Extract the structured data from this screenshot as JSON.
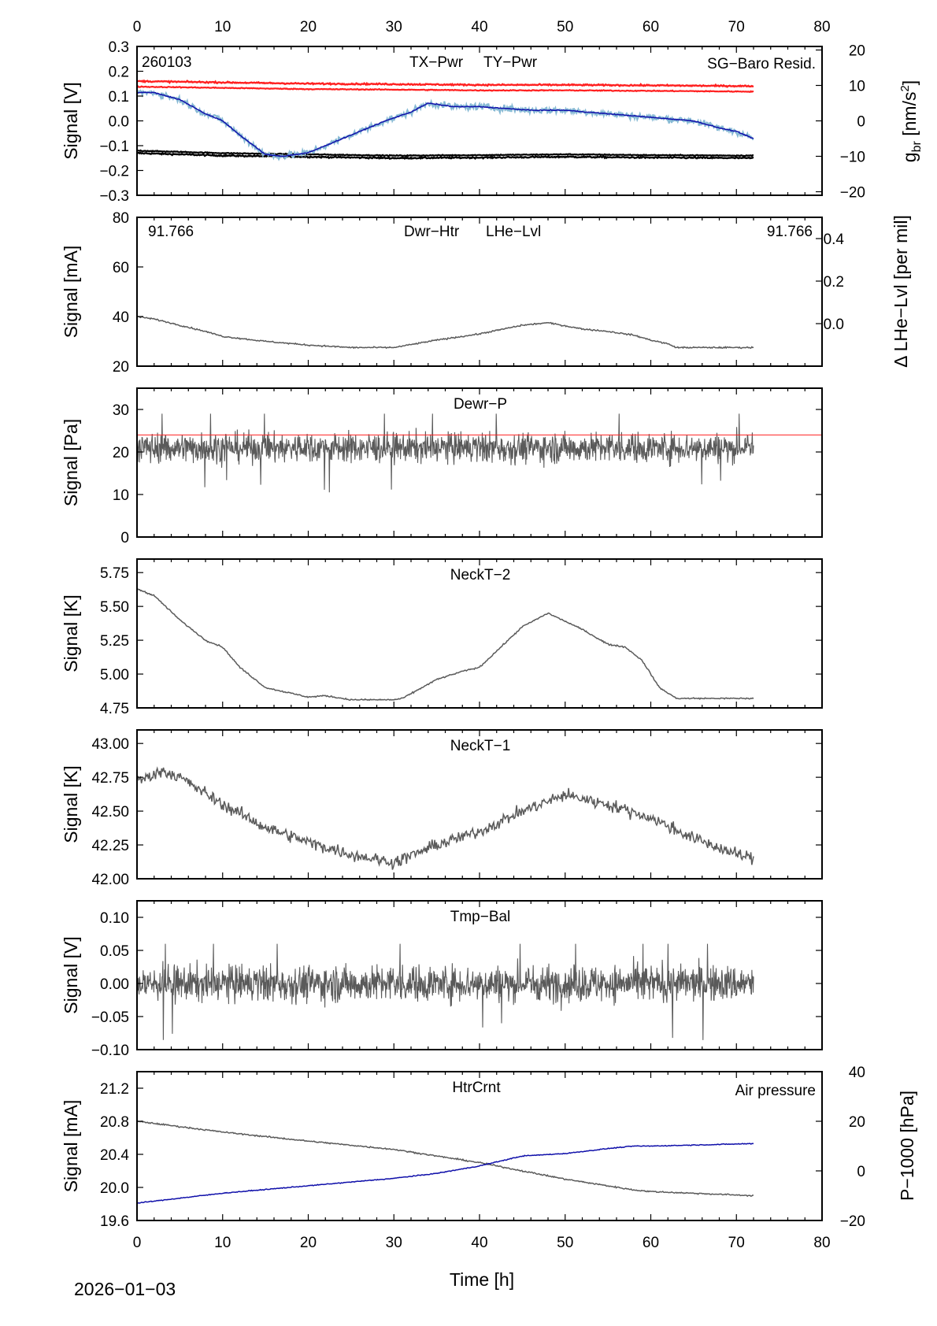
{
  "page": {
    "date_label": "2026−01−03",
    "x_axis_label": "Time [h]",
    "x_ticks": [
      "0",
      "10",
      "20",
      "30",
      "40",
      "50",
      "60",
      "70",
      "80"
    ],
    "xlim": [
      0,
      80
    ]
  },
  "colors": {
    "gray": "#5a5a5a",
    "red": "#ff2020",
    "blue": "#1010aa",
    "lightblue": "#86b9d4",
    "black": "#000000"
  },
  "chart_data": [
    {
      "type": "line",
      "panel": "power",
      "ylabel": "Signal [V]",
      "ylim": [
        -0.3,
        0.3
      ],
      "yticks": [
        "0.3",
        "0.2",
        "0.1",
        "0.0",
        "−0.1",
        "−0.2",
        "−0.3"
      ],
      "y2label": "g_br [nm/s^2]",
      "y2label_main": "g",
      "y2label_sub": "br",
      "y2label_rest": " [nm/s",
      "y2label_sup": "2",
      "y2label_end": "]",
      "y2lim": [
        -21,
        21
      ],
      "y2ticks": [
        "20",
        "10",
        "0",
        "−10",
        "−20"
      ],
      "station_id": "260103",
      "legend": [
        "TX−Pwr",
        "TY−Pwr",
        "SG−Baro Resid."
      ],
      "series": [
        {
          "name": "TX-Pwr",
          "color": "black",
          "axis": "left",
          "x": [
            0,
            10,
            20,
            30,
            40,
            50,
            60,
            72
          ],
          "values": [
            -0.13,
            -0.14,
            -0.145,
            -0.15,
            -0.148,
            -0.145,
            -0.148,
            -0.15
          ]
        },
        {
          "name": "TY-Pwr",
          "color": "red",
          "axis": "left",
          "x": [
            0,
            10,
            20,
            30,
            40,
            50,
            60,
            72
          ],
          "values": [
            0.16,
            0.155,
            0.15,
            0.148,
            0.145,
            0.145,
            0.143,
            0.14
          ]
        },
        {
          "name": "SG-Baro Resid.",
          "color": "blue",
          "axis": "right",
          "x": [
            0,
            2,
            5,
            8,
            10,
            12,
            15,
            17,
            20,
            23,
            26,
            29,
            32,
            34,
            37,
            40,
            43,
            46,
            50,
            55,
            60,
            65,
            68,
            70,
            72
          ],
          "values": [
            8,
            8,
            6,
            2,
            0,
            -4,
            -9.5,
            -10,
            -9,
            -6,
            -3,
            0,
            2.5,
            5,
            4,
            4,
            3.5,
            3,
            3,
            2,
            1,
            0,
            -2,
            -3,
            -5
          ]
        }
      ]
    },
    {
      "type": "line",
      "panel": "dewar-heater",
      "ylabel": "Signal [mA]",
      "ylim": [
        20,
        80
      ],
      "yticks": [
        "80",
        "60",
        "40",
        "20"
      ],
      "y2label": "Δ LHe−Lvl [per mil]",
      "y2lim": [
        -0.2,
        0.5
      ],
      "y2ticks": [
        "0.4",
        "0.2",
        "0.0"
      ],
      "annotations": {
        "left": "91.766",
        "right": "91.766"
      },
      "legend": [
        "Dwr−Htr",
        "LHe−Lvl"
      ],
      "series": [
        {
          "name": "Dwr-Htr",
          "color": "gray",
          "x": [
            0,
            2,
            5,
            8,
            10,
            15,
            20,
            25,
            30,
            35,
            40,
            45,
            48,
            52,
            55,
            58,
            60,
            62,
            63,
            65,
            68,
            72
          ],
          "values": [
            40,
            39,
            36.5,
            34,
            32,
            30,
            28.5,
            27.5,
            27.5,
            30.5,
            33,
            36.5,
            37.5,
            35,
            34,
            32.5,
            30.5,
            29,
            27.5,
            27.5,
            27.5,
            27.5
          ]
        }
      ]
    },
    {
      "type": "line",
      "panel": "dewar-pressure",
      "ylabel": "Signal [Pa]",
      "ylim": [
        0,
        35
      ],
      "yticks": [
        "30",
        "20",
        "10",
        "0"
      ],
      "legend": [
        "Dewr−P"
      ],
      "threshold": 24,
      "series": [
        {
          "name": "Dewr-P",
          "color": "gray",
          "noise": "high",
          "x": [
            0,
            72
          ],
          "values": [
            21,
            21
          ],
          "min": 10,
          "max": 29
        }
      ]
    },
    {
      "type": "line",
      "panel": "neck-t2",
      "ylabel": "Signal [K]",
      "ylim": [
        4.75,
        5.85
      ],
      "yticks": [
        "5.75",
        "5.50",
        "5.25",
        "5.00",
        "4.75"
      ],
      "legend": [
        "NeckT−2"
      ],
      "series": [
        {
          "name": "NeckT-2",
          "color": "gray",
          "x": [
            0,
            2,
            5,
            8,
            10,
            12,
            15,
            20,
            22,
            25,
            30,
            31,
            35,
            38,
            40,
            45,
            48,
            52,
            55,
            57,
            59,
            61,
            63,
            72
          ],
          "values": [
            5.63,
            5.58,
            5.4,
            5.25,
            5.2,
            5.05,
            4.9,
            4.83,
            4.84,
            4.81,
            4.81,
            4.82,
            4.96,
            5.02,
            5.05,
            5.35,
            5.45,
            5.33,
            5.22,
            5.2,
            5.1,
            4.9,
            4.82,
            4.82
          ]
        }
      ]
    },
    {
      "type": "line",
      "panel": "neck-t1",
      "ylabel": "Signal [K]",
      "ylim": [
        42.0,
        43.1
      ],
      "yticks": [
        "43.00",
        "42.75",
        "42.50",
        "42.25",
        "42.00"
      ],
      "legend": [
        "NeckT−1"
      ],
      "series": [
        {
          "name": "NeckT-1",
          "color": "gray",
          "noise": "medium",
          "x": [
            0,
            3,
            5,
            10,
            15,
            20,
            25,
            30,
            35,
            40,
            45,
            50,
            55,
            60,
            65,
            70,
            72
          ],
          "values": [
            42.72,
            42.8,
            42.75,
            42.55,
            42.38,
            42.27,
            42.18,
            42.12,
            42.25,
            42.35,
            42.5,
            42.62,
            42.55,
            42.45,
            42.3,
            42.18,
            42.15
          ]
        }
      ]
    },
    {
      "type": "line",
      "panel": "temp-balance",
      "ylabel": "Signal [V]",
      "ylim": [
        -0.1,
        0.125
      ],
      "yticks": [
        "0.10",
        "0.05",
        "0.00",
        "−0.05",
        "−0.10"
      ],
      "legend": [
        "Tmp−Bal"
      ],
      "series": [
        {
          "name": "Tmp-Bal",
          "color": "gray",
          "noise": "high",
          "x": [
            0,
            72
          ],
          "values": [
            0.0,
            0.0
          ],
          "min": -0.087,
          "max": 0.06
        }
      ]
    },
    {
      "type": "line",
      "panel": "heater-current",
      "ylabel": "Signal [mA]",
      "ylim": [
        19.6,
        21.4
      ],
      "yticks": [
        "21.2",
        "20.8",
        "20.4",
        "20.0",
        "19.6"
      ],
      "y2label": "P−1000 [hPa]",
      "y2lim": [
        -20,
        40
      ],
      "y2ticks": [
        "40",
        "20",
        "0",
        "−20"
      ],
      "legend": [
        "HtrCrnt",
        "Air pressure"
      ],
      "series": [
        {
          "name": "HtrCrnt",
          "color": "gray",
          "axis": "left",
          "x": [
            0,
            10,
            20,
            30,
            40,
            50,
            58,
            60,
            72
          ],
          "values": [
            20.8,
            20.67,
            20.56,
            20.46,
            20.3,
            20.1,
            19.97,
            19.95,
            19.9
          ]
        },
        {
          "name": "Air pressure",
          "color": "blue",
          "axis": "right",
          "x": [
            0,
            10,
            20,
            30,
            35,
            40,
            45,
            50,
            55,
            58,
            60,
            72
          ],
          "values": [
            -13,
            -9,
            -6,
            -3,
            -1,
            2,
            6,
            7,
            9,
            10,
            10,
            11
          ]
        }
      ]
    }
  ]
}
